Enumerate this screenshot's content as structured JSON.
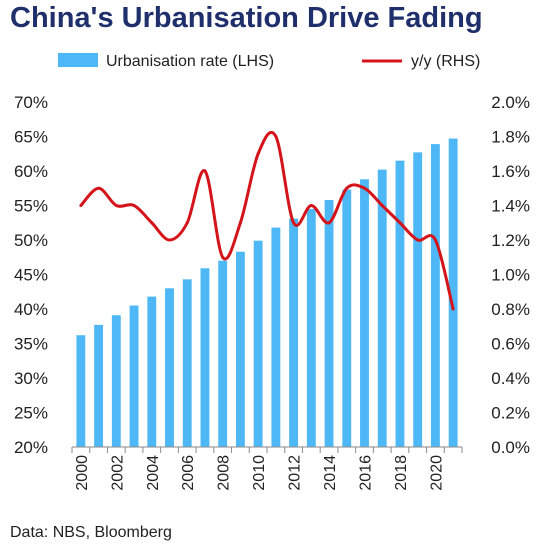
{
  "chart_data": {
    "type": "bar+line",
    "title": "China's Urbanisation Drive Fading",
    "source": "Data: NBS, Bloomberg",
    "categories": [
      "2000",
      "2001",
      "2002",
      "2003",
      "2004",
      "2005",
      "2006",
      "2007",
      "2008",
      "2009",
      "2010",
      "2011",
      "2012",
      "2013",
      "2014",
      "2015",
      "2016",
      "2017",
      "2018",
      "2019",
      "2020",
      "2021"
    ],
    "x_tick_labels": [
      "2000",
      "2002",
      "2004",
      "2006",
      "2008",
      "2010",
      "2012",
      "2014",
      "2016",
      "2018",
      "2020"
    ],
    "left_axis": {
      "ticks": [
        "20%",
        "25%",
        "30%",
        "35%",
        "40%",
        "45%",
        "50%",
        "55%",
        "60%",
        "65%",
        "70%"
      ],
      "ylim": [
        20,
        70
      ]
    },
    "right_axis": {
      "ticks": [
        "0.0%",
        "0.2%",
        "0.4%",
        "0.6%",
        "0.8%",
        "1.0%",
        "1.2%",
        "1.4%",
        "1.6%",
        "1.8%",
        "2.0%"
      ],
      "ylim": [
        0,
        2.0
      ]
    },
    "series": [
      {
        "name": "Urbanisation rate (LHS)",
        "type": "bar",
        "axis": "left",
        "color": "#4db8f5",
        "values": [
          36.2,
          37.7,
          39.1,
          40.5,
          41.8,
          43.0,
          44.3,
          45.9,
          47.0,
          48.3,
          49.9,
          51.8,
          53.1,
          54.5,
          55.8,
          57.3,
          58.8,
          60.2,
          61.5,
          62.7,
          63.9,
          64.7
        ]
      },
      {
        "name": "y/y (RHS)",
        "type": "line",
        "axis": "right",
        "color": "#d4141a",
        "values": [
          1.4,
          1.5,
          1.4,
          1.4,
          1.3,
          1.2,
          1.3,
          1.6,
          1.1,
          1.3,
          1.7,
          1.8,
          1.3,
          1.4,
          1.3,
          1.5,
          1.5,
          1.4,
          1.3,
          1.2,
          1.2,
          0.8
        ]
      }
    ],
    "grid": false,
    "legend_position": "top"
  }
}
